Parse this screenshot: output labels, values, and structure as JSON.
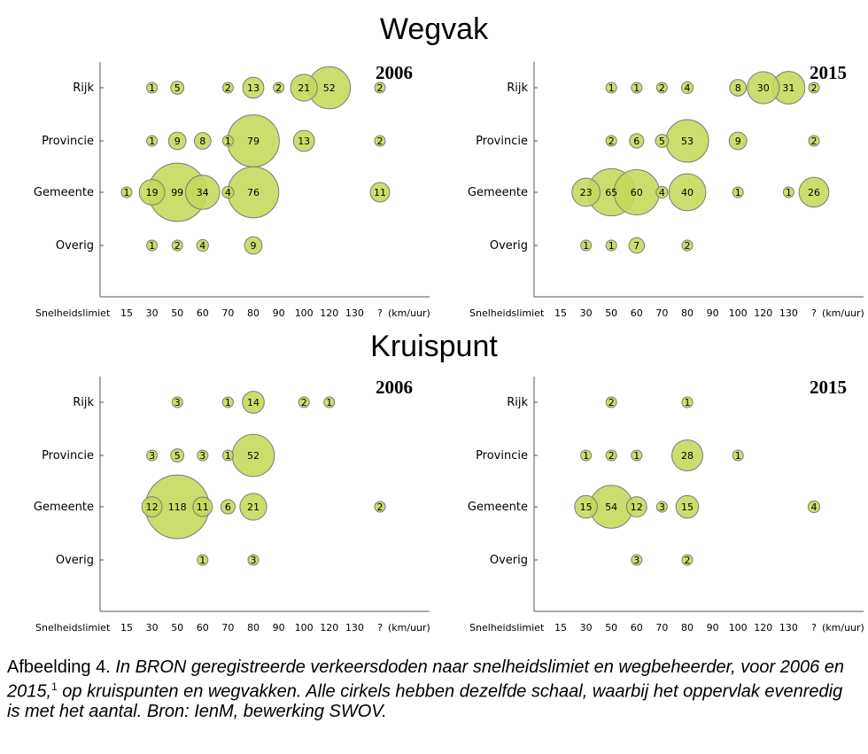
{
  "sections": {
    "wegvak": "Wegvak",
    "kruispunt": "Kruispunt"
  },
  "caption": {
    "lead": "Afbeelding 4. ",
    "text_part1": "In BRON geregistreerde verkeersdoden naar snelheidslimiet en wegbeheerder, voor 2006 en 2015,",
    "footnote": "1",
    "text_part2": " op kruispunten en wegvakken. Alle cirkels hebben dezelfde schaal, waarbij het oppervlak evenredig is met het aantal. Bron: IenM, bewerking SWOV."
  },
  "chart_data": [
    {
      "type": "scatter",
      "section": "Wegvak",
      "title": "2006",
      "xlabel": "Snelheidslimiet",
      "x_unit": "(km/uur)",
      "x_categories": [
        "15",
        "30",
        "50",
        "60",
        "70",
        "80",
        "90",
        "100",
        "120",
        "130",
        "?"
      ],
      "y_categories": [
        "Rijk",
        "Provincie",
        "Gemeente",
        "Overig"
      ],
      "bubble_size": "area proportional to count",
      "points": [
        {
          "y": "Rijk",
          "x": "30",
          "value": 1
        },
        {
          "y": "Rijk",
          "x": "50",
          "value": 5
        },
        {
          "y": "Rijk",
          "x": "70",
          "value": 2
        },
        {
          "y": "Rijk",
          "x": "80",
          "value": 13
        },
        {
          "y": "Rijk",
          "x": "90",
          "value": 2
        },
        {
          "y": "Rijk",
          "x": "100",
          "value": 21
        },
        {
          "y": "Rijk",
          "x": "120",
          "value": 52
        },
        {
          "y": "Rijk",
          "x": "?",
          "value": 2
        },
        {
          "y": "Provincie",
          "x": "30",
          "value": 1
        },
        {
          "y": "Provincie",
          "x": "50",
          "value": 9
        },
        {
          "y": "Provincie",
          "x": "60",
          "value": 8
        },
        {
          "y": "Provincie",
          "x": "70",
          "value": 1
        },
        {
          "y": "Provincie",
          "x": "80",
          "value": 79
        },
        {
          "y": "Provincie",
          "x": "100",
          "value": 13
        },
        {
          "y": "Provincie",
          "x": "?",
          "value": 2
        },
        {
          "y": "Gemeente",
          "x": "15",
          "value": 1
        },
        {
          "y": "Gemeente",
          "x": "30",
          "value": 19
        },
        {
          "y": "Gemeente",
          "x": "50",
          "value": 99
        },
        {
          "y": "Gemeente",
          "x": "60",
          "value": 34
        },
        {
          "y": "Gemeente",
          "x": "70",
          "value": 4
        },
        {
          "y": "Gemeente",
          "x": "80",
          "value": 76
        },
        {
          "y": "Gemeente",
          "x": "?",
          "value": 11
        },
        {
          "y": "Overig",
          "x": "30",
          "value": 1
        },
        {
          "y": "Overig",
          "x": "50",
          "value": 2
        },
        {
          "y": "Overig",
          "x": "60",
          "value": 4
        },
        {
          "y": "Overig",
          "x": "80",
          "value": 9
        }
      ]
    },
    {
      "type": "scatter",
      "section": "Wegvak",
      "title": "2015",
      "xlabel": "Snelheidslimiet",
      "x_unit": "(km/uur)",
      "x_categories": [
        "15",
        "30",
        "50",
        "60",
        "70",
        "80",
        "90",
        "100",
        "120",
        "130",
        "?"
      ],
      "y_categories": [
        "Rijk",
        "Provincie",
        "Gemeente",
        "Overig"
      ],
      "bubble_size": "area proportional to count",
      "points": [
        {
          "y": "Rijk",
          "x": "50",
          "value": 1
        },
        {
          "y": "Rijk",
          "x": "60",
          "value": 1
        },
        {
          "y": "Rijk",
          "x": "70",
          "value": 2
        },
        {
          "y": "Rijk",
          "x": "80",
          "value": 4
        },
        {
          "y": "Rijk",
          "x": "100",
          "value": 8
        },
        {
          "y": "Rijk",
          "x": "120",
          "value": 30
        },
        {
          "y": "Rijk",
          "x": "130",
          "value": 31
        },
        {
          "y": "Rijk",
          "x": "?",
          "value": 2
        },
        {
          "y": "Provincie",
          "x": "50",
          "value": 2
        },
        {
          "y": "Provincie",
          "x": "60",
          "value": 6
        },
        {
          "y": "Provincie",
          "x": "70",
          "value": 5
        },
        {
          "y": "Provincie",
          "x": "80",
          "value": 53
        },
        {
          "y": "Provincie",
          "x": "100",
          "value": 9
        },
        {
          "y": "Provincie",
          "x": "?",
          "value": 2
        },
        {
          "y": "Gemeente",
          "x": "30",
          "value": 23
        },
        {
          "y": "Gemeente",
          "x": "50",
          "value": 65
        },
        {
          "y": "Gemeente",
          "x": "60",
          "value": 60
        },
        {
          "y": "Gemeente",
          "x": "70",
          "value": 4
        },
        {
          "y": "Gemeente",
          "x": "80",
          "value": 40
        },
        {
          "y": "Gemeente",
          "x": "100",
          "value": 1
        },
        {
          "y": "Gemeente",
          "x": "130",
          "value": 1
        },
        {
          "y": "Gemeente",
          "x": "?",
          "value": 26
        },
        {
          "y": "Overig",
          "x": "30",
          "value": 1
        },
        {
          "y": "Overig",
          "x": "50",
          "value": 1
        },
        {
          "y": "Overig",
          "x": "60",
          "value": 7
        },
        {
          "y": "Overig",
          "x": "80",
          "value": 2
        }
      ]
    },
    {
      "type": "scatter",
      "section": "Kruispunt",
      "title": "2006",
      "xlabel": "Snelheidslimiet",
      "x_unit": "(km/uur)",
      "x_categories": [
        "15",
        "30",
        "50",
        "60",
        "70",
        "80",
        "90",
        "100",
        "120",
        "130",
        "?"
      ],
      "y_categories": [
        "Rijk",
        "Provincie",
        "Gemeente",
        "Overig"
      ],
      "bubble_size": "area proportional to count",
      "points": [
        {
          "y": "Rijk",
          "x": "50",
          "value": 3
        },
        {
          "y": "Rijk",
          "x": "70",
          "value": 1
        },
        {
          "y": "Rijk",
          "x": "80",
          "value": 14
        },
        {
          "y": "Rijk",
          "x": "100",
          "value": 2
        },
        {
          "y": "Rijk",
          "x": "120",
          "value": 1
        },
        {
          "y": "Provincie",
          "x": "30",
          "value": 3
        },
        {
          "y": "Provincie",
          "x": "50",
          "value": 5
        },
        {
          "y": "Provincie",
          "x": "60",
          "value": 3
        },
        {
          "y": "Provincie",
          "x": "70",
          "value": 1
        },
        {
          "y": "Provincie",
          "x": "80",
          "value": 52
        },
        {
          "y": "Gemeente",
          "x": "30",
          "value": 12
        },
        {
          "y": "Gemeente",
          "x": "50",
          "value": 118
        },
        {
          "y": "Gemeente",
          "x": "60",
          "value": 11
        },
        {
          "y": "Gemeente",
          "x": "70",
          "value": 6
        },
        {
          "y": "Gemeente",
          "x": "80",
          "value": 21
        },
        {
          "y": "Gemeente",
          "x": "?",
          "value": 2
        },
        {
          "y": "Overig",
          "x": "60",
          "value": 1
        },
        {
          "y": "Overig",
          "x": "80",
          "value": 3
        }
      ]
    },
    {
      "type": "scatter",
      "section": "Kruispunt",
      "title": "2015",
      "xlabel": "Snelheidslimiet",
      "x_unit": "(km/uur)",
      "x_categories": [
        "15",
        "30",
        "50",
        "60",
        "70",
        "80",
        "90",
        "100",
        "120",
        "130",
        "?"
      ],
      "y_categories": [
        "Rijk",
        "Provincie",
        "Gemeente",
        "Overig"
      ],
      "bubble_size": "area proportional to count",
      "points": [
        {
          "y": "Rijk",
          "x": "50",
          "value": 2
        },
        {
          "y": "Rijk",
          "x": "80",
          "value": 1
        },
        {
          "y": "Provincie",
          "x": "30",
          "value": 1
        },
        {
          "y": "Provincie",
          "x": "50",
          "value": 2
        },
        {
          "y": "Provincie",
          "x": "60",
          "value": 1
        },
        {
          "y": "Provincie",
          "x": "80",
          "value": 28
        },
        {
          "y": "Provincie",
          "x": "100",
          "value": 1
        },
        {
          "y": "Gemeente",
          "x": "30",
          "value": 15
        },
        {
          "y": "Gemeente",
          "x": "50",
          "value": 54
        },
        {
          "y": "Gemeente",
          "x": "60",
          "value": 12
        },
        {
          "y": "Gemeente",
          "x": "70",
          "value": 3
        },
        {
          "y": "Gemeente",
          "x": "80",
          "value": 15
        },
        {
          "y": "Gemeente",
          "x": "?",
          "value": 4
        },
        {
          "y": "Overig",
          "x": "60",
          "value": 3
        },
        {
          "y": "Overig",
          "x": "80",
          "value": 2
        }
      ]
    }
  ]
}
